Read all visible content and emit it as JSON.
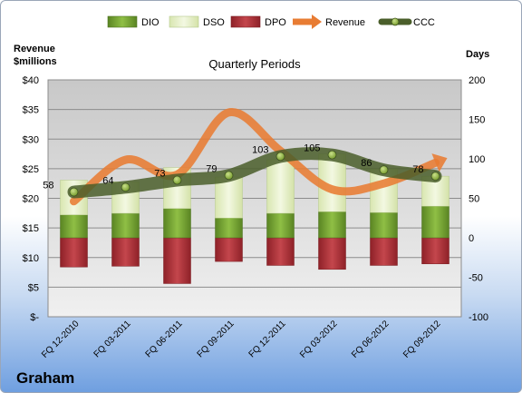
{
  "chart_data": {
    "type": "bar",
    "title": "Quarterly Periods",
    "company": "Graham",
    "left_axis_label": [
      "Revenue",
      "$millions"
    ],
    "right_axis_label": "Days",
    "left_ticks": [
      "$-",
      "$5",
      "$10",
      "$15",
      "$20",
      "$25",
      "$30",
      "$35",
      "$40"
    ],
    "right_ticks": [
      "-100",
      "-50",
      "0",
      "50",
      "100",
      "150",
      "200"
    ],
    "left_ylim": [
      0,
      40
    ],
    "right_ylim": [
      -100,
      200
    ],
    "legend_position": "top",
    "categories": [
      "FQ 12-2010",
      "FQ 03-2011",
      "FQ 06-2011",
      "FQ 09-2011",
      "FQ 12-2011",
      "FQ 03-2012",
      "FQ 06-2012",
      "FQ 09-2012"
    ],
    "series": [
      {
        "name": "DIO",
        "axis": "right",
        "kind": "stacked-bar",
        "color": "#6f9a2c",
        "values": [
          29,
          31,
          37,
          25,
          31,
          33,
          32,
          40
        ]
      },
      {
        "name": "DSO",
        "axis": "right",
        "kind": "stacked-bar",
        "color": "#e8f1c9",
        "values": [
          44,
          40,
          52,
          52,
          68,
          73,
          55,
          38
        ]
      },
      {
        "name": "DPO",
        "axis": "right",
        "kind": "negative-bar",
        "color": "#b0343a",
        "values": [
          -37,
          -36,
          -58,
          -30,
          -35,
          -40,
          -35,
          -33
        ]
      },
      {
        "name": "Revenue",
        "axis": "left",
        "kind": "line",
        "color": "#e87c33",
        "values": [
          19.5,
          26.5,
          24.0,
          34.5,
          28.0,
          21.5,
          22.5,
          26.0
        ]
      },
      {
        "name": "CCC",
        "axis": "right",
        "kind": "line",
        "color": "#4a5e2a",
        "values": [
          58,
          64,
          73,
          79,
          103,
          105,
          86,
          78
        ]
      }
    ],
    "ccc_labels": [
      "58",
      "64",
      "73",
      "79",
      "103",
      "105",
      "86",
      "78"
    ],
    "grid": true
  }
}
